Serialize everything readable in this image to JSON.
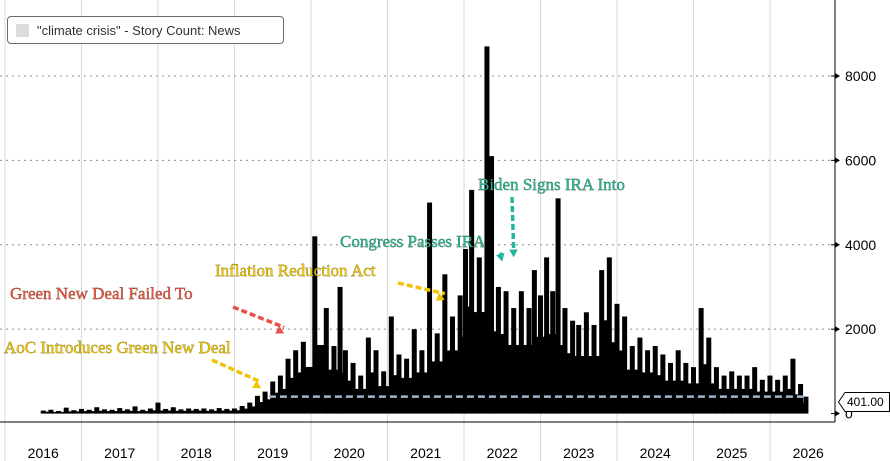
{
  "legend": {
    "label": "\"climate crisis\" - Story Count: News",
    "swatch_color": "#dcdcdc"
  },
  "last_value_label": "401.00",
  "chart_data": {
    "type": "bar",
    "title": "",
    "series": [
      {
        "name": "\"climate crisis\" - Story Count: News",
        "color": "#000000"
      }
    ],
    "x_tick_labels": [
      "2016",
      "2017",
      "2018",
      "2019",
      "2020",
      "2021",
      "2022",
      "2023",
      "2024",
      "2025",
      "2026"
    ],
    "x_range": [
      2016,
      2026
    ],
    "y_ticks": [
      0,
      2000,
      4000,
      6000,
      8000
    ],
    "y_tick_labels": [
      "0",
      "2000",
      "4000",
      "6000",
      "8000"
    ],
    "ylim": [
      -200,
      9800
    ],
    "y_axis_side": "right",
    "grid": {
      "horizontal": "dotted",
      "vertical": "solid"
    },
    "reference_line": {
      "value": 401,
      "color": "#9fb8d0",
      "style": "dashed"
    },
    "last_value": 401,
    "bars": [
      [
        2016.0,
        70
      ],
      [
        2016.1,
        90
      ],
      [
        2016.2,
        60
      ],
      [
        2016.3,
        140
      ],
      [
        2016.4,
        80
      ],
      [
        2016.5,
        110
      ],
      [
        2016.6,
        90
      ],
      [
        2016.7,
        150
      ],
      [
        2016.8,
        100
      ],
      [
        2016.9,
        90
      ],
      [
        2017.0,
        130
      ],
      [
        2017.1,
        100
      ],
      [
        2017.2,
        170
      ],
      [
        2017.3,
        90
      ],
      [
        2017.4,
        120
      ],
      [
        2017.5,
        260
      ],
      [
        2017.6,
        110
      ],
      [
        2017.7,
        150
      ],
      [
        2017.8,
        100
      ],
      [
        2017.9,
        120
      ],
      [
        2018.0,
        110
      ],
      [
        2018.1,
        120
      ],
      [
        2018.2,
        100
      ],
      [
        2018.3,
        130
      ],
      [
        2018.4,
        110
      ],
      [
        2018.5,
        120
      ],
      [
        2018.6,
        180
      ],
      [
        2018.7,
        260
      ],
      [
        2018.8,
        420
      ],
      [
        2018.9,
        520
      ],
      [
        2019.0,
        760
      ],
      [
        2019.1,
        900
      ],
      [
        2019.2,
        1300
      ],
      [
        2019.3,
        1500
      ],
      [
        2019.4,
        1700
      ],
      [
        2019.55,
        4200
      ],
      [
        2019.7,
        2500
      ],
      [
        2019.8,
        1600
      ],
      [
        2019.88,
        3000
      ],
      [
        2019.95,
        1500
      ],
      [
        2020.05,
        1200
      ],
      [
        2020.15,
        900
      ],
      [
        2020.25,
        1800
      ],
      [
        2020.35,
        1500
      ],
      [
        2020.45,
        1000
      ],
      [
        2020.55,
        2300
      ],
      [
        2020.65,
        1400
      ],
      [
        2020.75,
        1300
      ],
      [
        2020.85,
        2000
      ],
      [
        2020.95,
        1500
      ],
      [
        2021.05,
        5000
      ],
      [
        2021.15,
        1900
      ],
      [
        2021.25,
        3300
      ],
      [
        2021.35,
        2300
      ],
      [
        2021.45,
        2800
      ],
      [
        2021.52,
        3900
      ],
      [
        2021.6,
        5300
      ],
      [
        2021.7,
        3700
      ],
      [
        2021.8,
        8700
      ],
      [
        2021.86,
        6100
      ],
      [
        2021.95,
        3000
      ],
      [
        2022.05,
        2900
      ],
      [
        2022.15,
        2500
      ],
      [
        2022.25,
        2900
      ],
      [
        2022.35,
        2500
      ],
      [
        2022.42,
        3400
      ],
      [
        2022.5,
        2800
      ],
      [
        2022.58,
        3700
      ],
      [
        2022.66,
        2900
      ],
      [
        2022.73,
        5100
      ],
      [
        2022.82,
        2500
      ],
      [
        2022.92,
        2200
      ],
      [
        2023.0,
        2100
      ],
      [
        2023.1,
        2400
      ],
      [
        2023.2,
        2100
      ],
      [
        2023.3,
        3400
      ],
      [
        2023.4,
        3700
      ],
      [
        2023.5,
        2600
      ],
      [
        2023.6,
        2300
      ],
      [
        2023.7,
        1600
      ],
      [
        2023.8,
        1800
      ],
      [
        2023.9,
        1500
      ],
      [
        2024.0,
        1600
      ],
      [
        2024.1,
        1400
      ],
      [
        2024.2,
        1200
      ],
      [
        2024.3,
        1500
      ],
      [
        2024.4,
        1200
      ],
      [
        2024.5,
        1100
      ],
      [
        2024.6,
        2500
      ],
      [
        2024.7,
        1800
      ],
      [
        2024.8,
        1100
      ],
      [
        2024.9,
        900
      ],
      [
        2025.0,
        1000
      ],
      [
        2025.1,
        900
      ],
      [
        2025.2,
        900
      ],
      [
        2025.3,
        1100
      ],
      [
        2025.4,
        800
      ],
      [
        2025.5,
        900
      ],
      [
        2025.6,
        800
      ],
      [
        2025.7,
        900
      ],
      [
        2025.8,
        1300
      ],
      [
        2025.9,
        700
      ],
      [
        2025.97,
        401
      ]
    ],
    "annotations": [
      {
        "text": "AoC Introduces Green New Deal",
        "color": "#f0c400",
        "arrow_to": [
          2018.85,
          600
        ]
      },
      {
        "text": "Green New Deal Failed To",
        "color": "#e8504a",
        "arrow_to": [
          2019.15,
          1900
        ]
      },
      {
        "text": "Inflation Reduction Act",
        "color": "#f0c400",
        "arrow_to": [
          2021.25,
          2700
        ]
      },
      {
        "text": "Congress Passes IRA",
        "color": "#22b5a0",
        "arrow_to": [
          2022.0,
          3600
        ]
      },
      {
        "text": "Biden Signs IRA Into",
        "color": "#22b5a0",
        "arrow_to": [
          2022.15,
          3700
        ]
      }
    ]
  }
}
